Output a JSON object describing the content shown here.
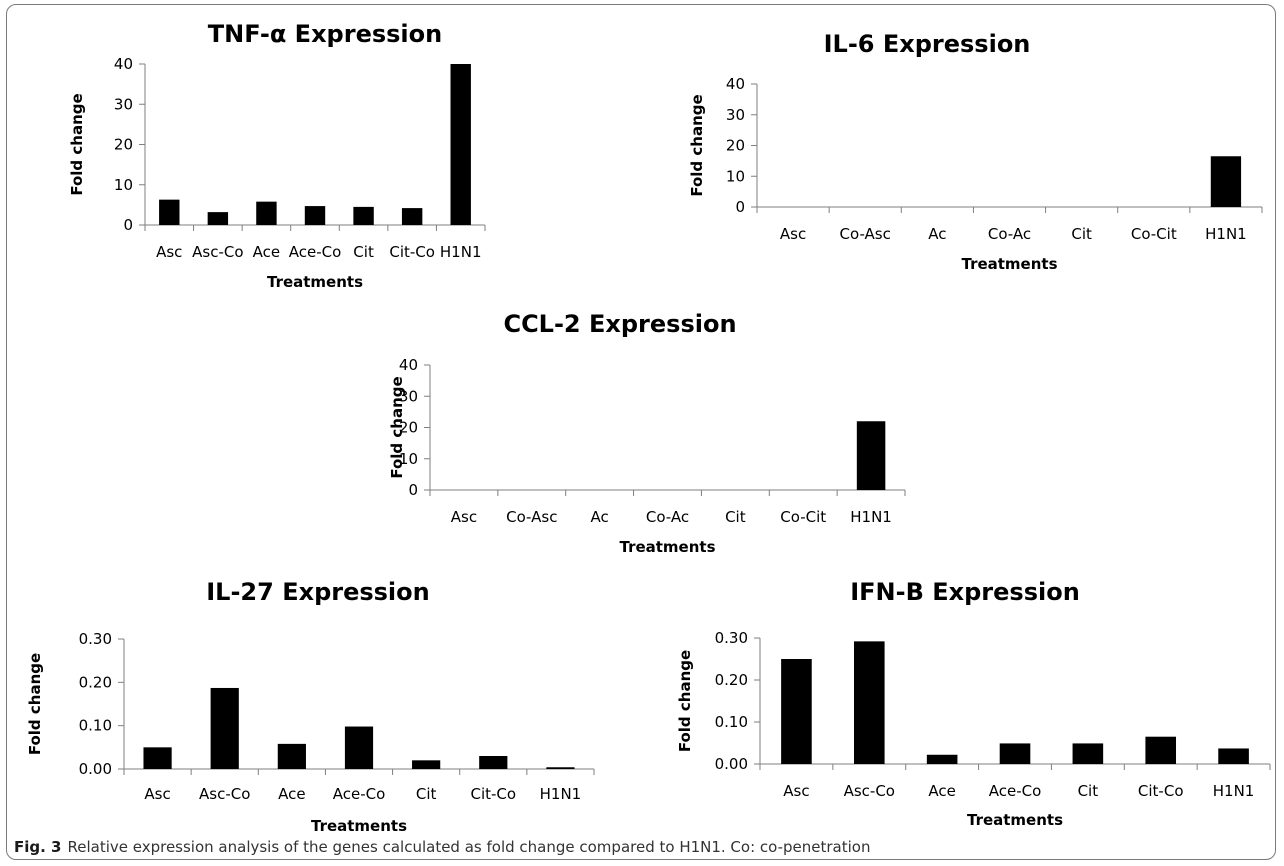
{
  "caption": {
    "fig_label": "Fig. 3",
    "text": "Relative expression analysis of the genes calculated as fold change compared to H1N1. Co: co-penetration"
  },
  "chart_data": [
    {
      "type": "bar",
      "title": "TNF-α Expression",
      "xlabel": "Treatments",
      "ylabel": "Fold change",
      "categories": [
        "Asc",
        "Asc-Co",
        "Ace",
        "Ace-Co",
        "Cit",
        "Cit-Co",
        "H1N1"
      ],
      "values": [
        6.3,
        3.2,
        5.8,
        4.7,
        4.5,
        4.2,
        40
      ],
      "ylim": [
        0,
        40
      ],
      "yticks": [
        "0",
        "10",
        "20",
        "30",
        "40"
      ],
      "grid": false,
      "color": "#000000"
    },
    {
      "type": "bar",
      "title": "IL-6 Expression",
      "xlabel": "Treatments",
      "ylabel": "Fold change",
      "categories": [
        "Asc",
        "Co-Asc",
        "Ac",
        "Co-Ac",
        "Cit",
        "Co-Cit",
        "H1N1"
      ],
      "values": [
        0,
        0,
        0,
        0,
        0,
        0,
        16.5
      ],
      "ylim": [
        0,
        40
      ],
      "yticks": [
        "0",
        "10",
        "20",
        "30",
        "40"
      ],
      "grid": false,
      "color": "#000000"
    },
    {
      "type": "bar",
      "title": "CCL-2 Expression",
      "xlabel": "Treatments",
      "ylabel": "Fold change",
      "categories": [
        "Asc",
        "Co-Asc",
        "Ac",
        "Co-Ac",
        "Cit",
        "Co-Cit",
        "H1N1"
      ],
      "values": [
        0,
        0,
        0,
        0,
        0,
        0,
        22
      ],
      "ylim": [
        0,
        40
      ],
      "yticks": [
        "0",
        "10",
        "20",
        "30",
        "40"
      ],
      "grid": false,
      "color": "#000000"
    },
    {
      "type": "bar",
      "title": "IL-27 Expression",
      "xlabel": "Treatments",
      "ylabel": "Fold change",
      "categories": [
        "Asc",
        "Asc-Co",
        "Ace",
        "Ace-Co",
        "Cit",
        "Cit-Co",
        "H1N1"
      ],
      "values": [
        0.05,
        0.187,
        0.058,
        0.098,
        0.02,
        0.03,
        0.004
      ],
      "ylim": [
        0,
        0.3
      ],
      "yticks": [
        "0.00",
        "0.10",
        "0.20",
        "0.30"
      ],
      "grid": false,
      "color": "#000000"
    },
    {
      "type": "bar",
      "title": "IFN-B Expression",
      "xlabel": "Treatments",
      "ylabel": "Fold change",
      "categories": [
        "Asc",
        "Asc-Co",
        "Ace",
        "Ace-Co",
        "Cit",
        "Cit-Co",
        "H1N1"
      ],
      "values": [
        0.25,
        0.292,
        0.022,
        0.049,
        0.049,
        0.065,
        0.037
      ],
      "ylim": [
        0,
        0.3
      ],
      "yticks": [
        "0.00",
        "0.10",
        "0.20",
        "0.30"
      ],
      "grid": false,
      "color": "#000000"
    }
  ]
}
